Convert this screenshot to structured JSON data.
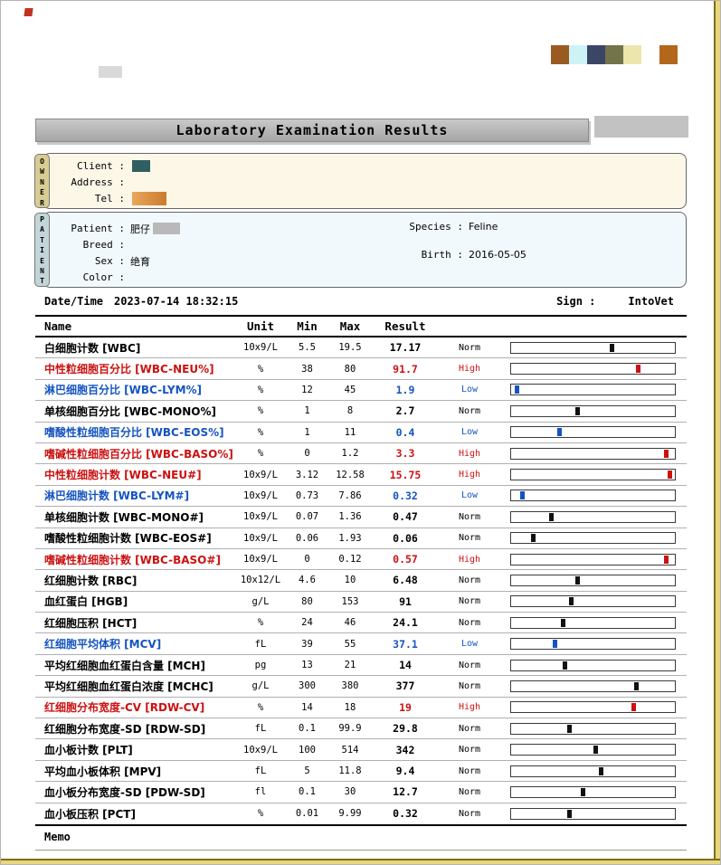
{
  "report": {
    "title": "Laboratory Examination Results",
    "owner": {
      "tab": "OWNER",
      "fields": [
        {
          "label": "Client :"
        },
        {
          "label": "Address :"
        },
        {
          "label": "Tel :"
        }
      ]
    },
    "patient": {
      "tab": "PATIENT",
      "fields_left": [
        {
          "label": "Patient :",
          "value": "肥仔"
        },
        {
          "label": "Breed :",
          "value": ""
        },
        {
          "label": "Sex :",
          "value": "绝育"
        },
        {
          "label": "Color :",
          "value": ""
        }
      ],
      "fields_right": [
        {
          "label": "Species :",
          "value": "Feline"
        },
        {
          "label": "Birth :",
          "value": "2016-05-05"
        }
      ]
    },
    "meta": {
      "datetime_label": "Date/Time",
      "datetime_value": "2023-07-14 18:32:15",
      "sign_label": "Sign :",
      "sign_value": "IntoVet"
    },
    "memo_label": "Memo"
  },
  "status_colors": {
    "Norm": "#000000",
    "High": "#cc1111",
    "Low": "#1554c0"
  },
  "logo_colors": [
    "#9a5b22",
    "#ccf4f6",
    "#3b4565",
    "#74744a",
    "#ece5ac",
    "#ffffff",
    "#b2671c"
  ],
  "table": {
    "headers": {
      "name": "Name",
      "unit": "Unit",
      "min": "Min",
      "max": "Max",
      "result": "Result"
    },
    "rows": [
      {
        "name": "白细胞计数 [WBC]",
        "unit": "10x9/L",
        "min": "5.5",
        "max": "19.5",
        "result": "17.17",
        "status": "Norm",
        "bar_pos": 0.62
      },
      {
        "name": "中性粒细胞百分比 [WBC-NEU%]",
        "unit": "%",
        "min": "38",
        "max": "80",
        "result": "91.7",
        "status": "High",
        "bar_pos": 0.78
      },
      {
        "name": "淋巴细胞百分比 [WBC-LYM%]",
        "unit": "%",
        "min": "12",
        "max": "45",
        "result": "1.9",
        "status": "Low",
        "bar_pos": 0.04
      },
      {
        "name": "单核细胞百分比 [WBC-MONO%]",
        "unit": "%",
        "min": "1",
        "max": "8",
        "result": "2.7",
        "status": "Norm",
        "bar_pos": 0.41
      },
      {
        "name": "嗜酸性粒细胞百分比 [WBC-EOS%]",
        "unit": "%",
        "min": "1",
        "max": "11",
        "result": "0.4",
        "status": "Low",
        "bar_pos": 0.3
      },
      {
        "name": "嗜碱性粒细胞百分比 [WBC-BASO%]",
        "unit": "%",
        "min": "0",
        "max": "1.2",
        "result": "3.3",
        "status": "High",
        "bar_pos": 0.95
      },
      {
        "name": "中性粒细胞计数 [WBC-NEU#]",
        "unit": "10x9/L",
        "min": "3.12",
        "max": "12.58",
        "result": "15.75",
        "status": "High",
        "bar_pos": 0.97
      },
      {
        "name": "淋巴细胞计数 [WBC-LYM#]",
        "unit": "10x9/L",
        "min": "0.73",
        "max": "7.86",
        "result": "0.32",
        "status": "Low",
        "bar_pos": 0.07
      },
      {
        "name": "单核细胞计数 [WBC-MONO#]",
        "unit": "10x9/L",
        "min": "0.07",
        "max": "1.36",
        "result": "0.47",
        "status": "Norm",
        "bar_pos": 0.25
      },
      {
        "name": "嗜酸性粒细胞计数 [WBC-EOS#]",
        "unit": "10x9/L",
        "min": "0.06",
        "max": "1.93",
        "result": "0.06",
        "status": "Norm",
        "bar_pos": 0.14
      },
      {
        "name": "嗜碱性粒细胞计数 [WBC-BASO#]",
        "unit": "10x9/L",
        "min": "0",
        "max": "0.12",
        "result": "0.57",
        "status": "High",
        "bar_pos": 0.95
      },
      {
        "name": "红细胞计数 [RBC]",
        "unit": "10x12/L",
        "min": "4.6",
        "max": "10",
        "result": "6.48",
        "status": "Norm",
        "bar_pos": 0.41
      },
      {
        "name": "血红蛋白 [HGB]",
        "unit": "g/L",
        "min": "80",
        "max": "153",
        "result": "91",
        "status": "Norm",
        "bar_pos": 0.37
      },
      {
        "name": "红细胞压积 [HCT]",
        "unit": "%",
        "min": "24",
        "max": "46",
        "result": "24.1",
        "status": "Norm",
        "bar_pos": 0.32
      },
      {
        "name": "红细胞平均体积 [MCV]",
        "unit": "fL",
        "min": "39",
        "max": "55",
        "result": "37.1",
        "status": "Low",
        "bar_pos": 0.27
      },
      {
        "name": "平均红细胞血红蛋白含量 [MCH]",
        "unit": "pg",
        "min": "13",
        "max": "21",
        "result": "14",
        "status": "Norm",
        "bar_pos": 0.33
      },
      {
        "name": "平均红细胞血红蛋白浓度 [MCHC]",
        "unit": "g/L",
        "min": "300",
        "max": "380",
        "result": "377",
        "status": "Norm",
        "bar_pos": 0.77
      },
      {
        "name": "红细胞分布宽度-CV [RDW-CV]",
        "unit": "%",
        "min": "14",
        "max": "18",
        "result": "19",
        "status": "High",
        "bar_pos": 0.75
      },
      {
        "name": "红细胞分布宽度-SD [RDW-SD]",
        "unit": "fL",
        "min": "0.1",
        "max": "99.9",
        "result": "29.8",
        "status": "Norm",
        "bar_pos": 0.36
      },
      {
        "name": "血小板计数 [PLT]",
        "unit": "10x9/L",
        "min": "100",
        "max": "514",
        "result": "342",
        "status": "Norm",
        "bar_pos": 0.52
      },
      {
        "name": "平均血小板体积 [MPV]",
        "unit": "fL",
        "min": "5",
        "max": "11.8",
        "result": "9.4",
        "status": "Norm",
        "bar_pos": 0.55
      },
      {
        "name": "血小板分布宽度-SD [PDW-SD]",
        "unit": "fl",
        "min": "0.1",
        "max": "30",
        "result": "12.7",
        "status": "Norm",
        "bar_pos": 0.44
      },
      {
        "name": "血小板压积 [PCT]",
        "unit": "%",
        "min": "0.01",
        "max": "9.99",
        "result": "0.32",
        "status": "Norm",
        "bar_pos": 0.36
      }
    ]
  }
}
